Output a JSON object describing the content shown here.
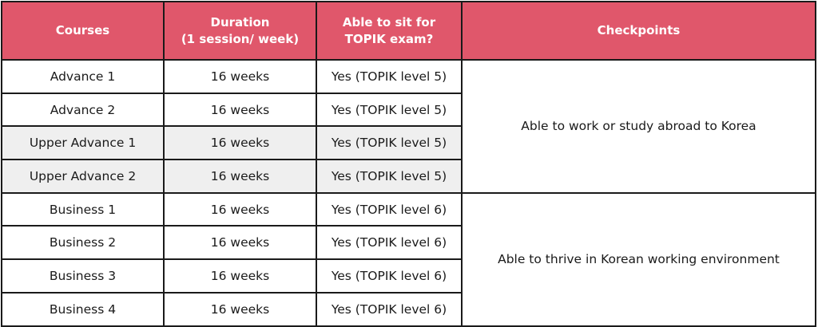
{
  "header": {
    "courses": "Courses",
    "duration_line1": "Duration",
    "duration_line2": "(1 session/ week)",
    "topik_line1": "Able to sit for",
    "topik_line2": "TOPIK exam?",
    "checkpoints": "Checkpoints"
  },
  "colors": {
    "header_bg": "#e0576b",
    "shaded_row": "#efefef"
  },
  "rows": [
    {
      "course": "Advance 1",
      "duration": "16 weeks",
      "topik": "Yes (TOPIK level 5)",
      "shaded": false
    },
    {
      "course": "Advance 2",
      "duration": "16 weeks",
      "topik": "Yes (TOPIK level 5)",
      "shaded": false
    },
    {
      "course": "Upper Advance 1",
      "duration": "16 weeks",
      "topik": "Yes (TOPIK level 5)",
      "shaded": true
    },
    {
      "course": "Upper Advance 2",
      "duration": "16 weeks",
      "topik": "Yes (TOPIK level 5)",
      "shaded": true
    },
    {
      "course": "Business 1",
      "duration": "16 weeks",
      "topik": "Yes (TOPIK level 6)",
      "shaded": false
    },
    {
      "course": "Business 2",
      "duration": "16 weeks",
      "topik": "Yes (TOPIK level 6)",
      "shaded": false
    },
    {
      "course": "Business 3",
      "duration": "16 weeks",
      "topik": "Yes (TOPIK level 6)",
      "shaded": false
    },
    {
      "course": "Business 4",
      "duration": "16 weeks",
      "topik": "Yes (TOPIK level 6)",
      "shaded": false
    }
  ],
  "checkpoints": [
    "Able to work or study abroad to Korea",
    "Able to thrive in Korean working environment"
  ]
}
